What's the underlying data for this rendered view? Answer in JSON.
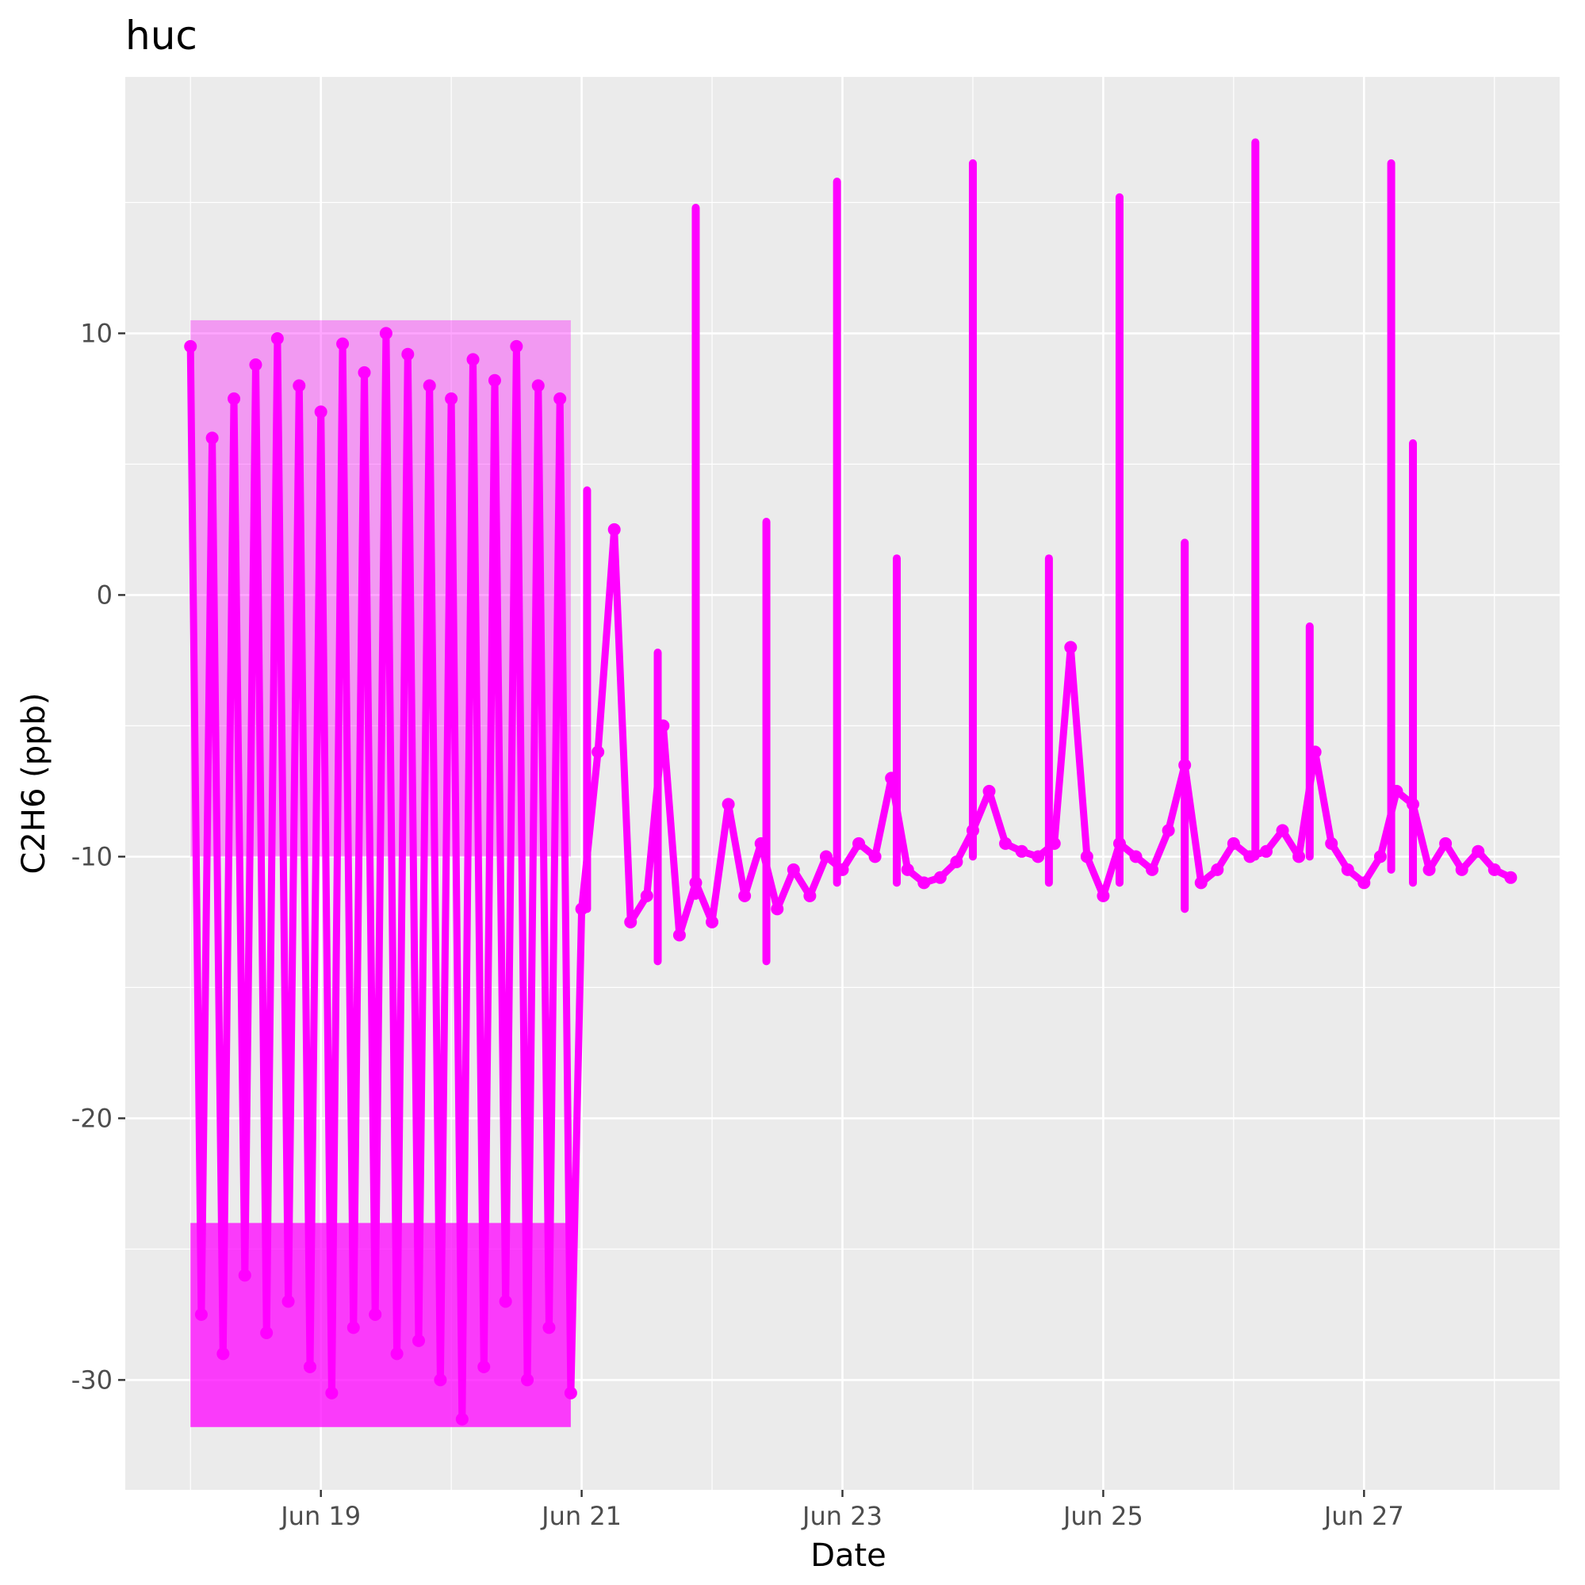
{
  "chart_data": {
    "type": "scatter",
    "title": "huc",
    "xlabel": "Date",
    "ylabel": "C2H6 (ppb)",
    "x_scale": "date",
    "xlim": [
      "2023-06-17 12:00",
      "2023-06-28 12:00"
    ],
    "ylim": [
      -34.2,
      19.8
    ],
    "x_ticks": [
      {
        "label": "Jun 19",
        "value": "2023-06-19"
      },
      {
        "label": "Jun 21",
        "value": "2023-06-21"
      },
      {
        "label": "Jun 23",
        "value": "2023-06-23"
      },
      {
        "label": "Jun 25",
        "value": "2023-06-25"
      },
      {
        "label": "Jun 27",
        "value": "2023-06-27"
      }
    ],
    "y_ticks": [
      10,
      0,
      -10,
      -20,
      -30
    ],
    "y_tick_labels": [
      "10",
      "0",
      "-10",
      "-20",
      "-30"
    ],
    "grid": true,
    "legend": "none",
    "color": "#ff00ff",
    "background": "#ebebeb",
    "series": [
      {
        "x": [
          "2023-06-18 00:00",
          "2023-06-18 02:00",
          "2023-06-18 04:00",
          "2023-06-18 06:00",
          "2023-06-18 08:00",
          "2023-06-18 10:00",
          "2023-06-18 12:00",
          "2023-06-18 14:00",
          "2023-06-18 16:00",
          "2023-06-18 18:00",
          "2023-06-18 20:00",
          "2023-06-18 22:00",
          "2023-06-19 00:00",
          "2023-06-19 02:00",
          "2023-06-19 04:00",
          "2023-06-19 06:00",
          "2023-06-19 08:00",
          "2023-06-19 10:00",
          "2023-06-19 12:00",
          "2023-06-19 14:00",
          "2023-06-19 16:00",
          "2023-06-19 18:00",
          "2023-06-19 20:00",
          "2023-06-19 22:00",
          "2023-06-20 00:00",
          "2023-06-20 02:00",
          "2023-06-20 04:00",
          "2023-06-20 06:00",
          "2023-06-20 08:00",
          "2023-06-20 10:00",
          "2023-06-20 12:00",
          "2023-06-20 14:00",
          "2023-06-20 16:00",
          "2023-06-20 18:00",
          "2023-06-20 20:00",
          "2023-06-20 22:00",
          "2023-06-21 00:00",
          "2023-06-21 03:00",
          "2023-06-21 06:00",
          "2023-06-21 09:00",
          "2023-06-21 12:00",
          "2023-06-21 15:00",
          "2023-06-21 18:00",
          "2023-06-21 21:00",
          "2023-06-22 00:00",
          "2023-06-22 03:00",
          "2023-06-22 06:00",
          "2023-06-22 09:00",
          "2023-06-22 12:00",
          "2023-06-22 15:00",
          "2023-06-22 18:00",
          "2023-06-22 21:00",
          "2023-06-23 00:00",
          "2023-06-23 03:00",
          "2023-06-23 06:00",
          "2023-06-23 09:00",
          "2023-06-23 12:00",
          "2023-06-23 15:00",
          "2023-06-23 18:00",
          "2023-06-23 21:00",
          "2023-06-24 00:00",
          "2023-06-24 03:00",
          "2023-06-24 06:00",
          "2023-06-24 09:00",
          "2023-06-24 12:00",
          "2023-06-24 15:00",
          "2023-06-24 18:00",
          "2023-06-24 21:00",
          "2023-06-25 00:00",
          "2023-06-25 03:00",
          "2023-06-25 06:00",
          "2023-06-25 09:00",
          "2023-06-25 12:00",
          "2023-06-25 15:00",
          "2023-06-25 18:00",
          "2023-06-25 21:00",
          "2023-06-26 00:00",
          "2023-06-26 03:00",
          "2023-06-26 06:00",
          "2023-06-26 09:00",
          "2023-06-26 12:00",
          "2023-06-26 15:00",
          "2023-06-26 18:00",
          "2023-06-26 21:00",
          "2023-06-27 00:00",
          "2023-06-27 03:00",
          "2023-06-27 06:00",
          "2023-06-27 09:00",
          "2023-06-27 12:00",
          "2023-06-27 15:00",
          "2023-06-27 18:00",
          "2023-06-27 21:00",
          "2023-06-28 00:00",
          "2023-06-28 03:00"
        ],
        "y": [
          9.5,
          -27.5,
          6.0,
          -29.0,
          7.5,
          -26.0,
          8.8,
          -28.2,
          9.8,
          -27.0,
          8.0,
          -29.5,
          7.0,
          -30.5,
          9.6,
          -28.0,
          8.5,
          -27.5,
          10.0,
          -29.0,
          9.2,
          -28.5,
          8.0,
          -30.0,
          7.5,
          -31.5,
          9.0,
          -29.5,
          8.2,
          -27.0,
          9.5,
          -30.0,
          8.0,
          -28.0,
          7.5,
          -30.5,
          -12.0,
          -6.0,
          2.5,
          -12.5,
          -11.5,
          -5.0,
          -13.0,
          -11.0,
          -12.5,
          -8.0,
          -11.5,
          -9.5,
          -12.0,
          -10.5,
          -11.5,
          -10.0,
          -10.5,
          -9.5,
          -10.0,
          -7.0,
          -10.5,
          -11.0,
          -10.8,
          -10.2,
          -9.0,
          -7.5,
          -9.5,
          -9.8,
          -10.0,
          -9.5,
          -2.0,
          -10.0,
          -11.5,
          -9.5,
          -10.0,
          -10.5,
          -9.0,
          -6.5,
          -11.0,
          -10.5,
          -9.5,
          -10.0,
          -9.8,
          -9.0,
          -10.0,
          -6.0,
          -9.5,
          -10.5,
          -11.0,
          -10.0,
          -7.5,
          -8.0,
          -10.5,
          -9.5,
          -10.5,
          -9.8,
          -10.5,
          -10.8
        ]
      }
    ],
    "spikes": [
      {
        "x": "2023-06-21 21:00",
        "y_min": -11.5,
        "y_max": 14.8
      },
      {
        "x": "2023-06-22 23:00",
        "y_min": -11.0,
        "y_max": 15.8
      },
      {
        "x": "2023-06-24 00:00",
        "y_min": -10.0,
        "y_max": 16.5
      },
      {
        "x": "2023-06-25 03:00",
        "y_min": -11.0,
        "y_max": 15.2
      },
      {
        "x": "2023-06-26 04:00",
        "y_min": -10.0,
        "y_max": 17.3
      },
      {
        "x": "2023-06-27 05:00",
        "y_min": -10.5,
        "y_max": 16.5
      },
      {
        "x": "2023-06-21 01:00",
        "y_min": -12.0,
        "y_max": 4.0
      },
      {
        "x": "2023-06-21 14:00",
        "y_min": -14.0,
        "y_max": -2.2
      },
      {
        "x": "2023-06-22 10:00",
        "y_min": -14.0,
        "y_max": 2.8
      },
      {
        "x": "2023-06-23 10:00",
        "y_min": -11.0,
        "y_max": 1.4
      },
      {
        "x": "2023-06-24 14:00",
        "y_min": -11.0,
        "y_max": 1.4
      },
      {
        "x": "2023-06-25 15:00",
        "y_min": -12.0,
        "y_max": 2.0
      },
      {
        "x": "2023-06-26 14:00",
        "y_min": -10.0,
        "y_max": -1.2
      },
      {
        "x": "2023-06-27 09:00",
        "y_min": -11.0,
        "y_max": 5.8
      }
    ],
    "dense_band": {
      "x_start": "2023-06-18 00:00",
      "x_end": "2023-06-20 22:00",
      "y_min": -31.8,
      "y_max": 10.5
    }
  }
}
